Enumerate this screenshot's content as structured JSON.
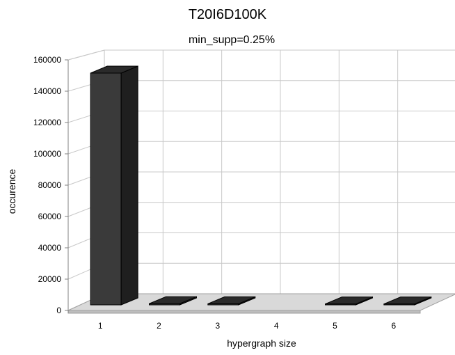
{
  "chart_data": {
    "type": "bar",
    "title": "T20I6D100K",
    "subtitle": "min_supp=0.25%",
    "xlabel": "hypergraph size",
    "ylabel": "occurence",
    "categories": [
      "1",
      "2",
      "3",
      "4",
      "5",
      "6"
    ],
    "values": [
      148000,
      800,
      700,
      0,
      600,
      600
    ],
    "yticks": [
      "0",
      "20000",
      "40000",
      "60000",
      "80000",
      "100000",
      "120000",
      "140000",
      "160000"
    ],
    "ylim": [
      0,
      160000
    ],
    "grid": true,
    "legend": "none",
    "bar_color": "#333333"
  }
}
